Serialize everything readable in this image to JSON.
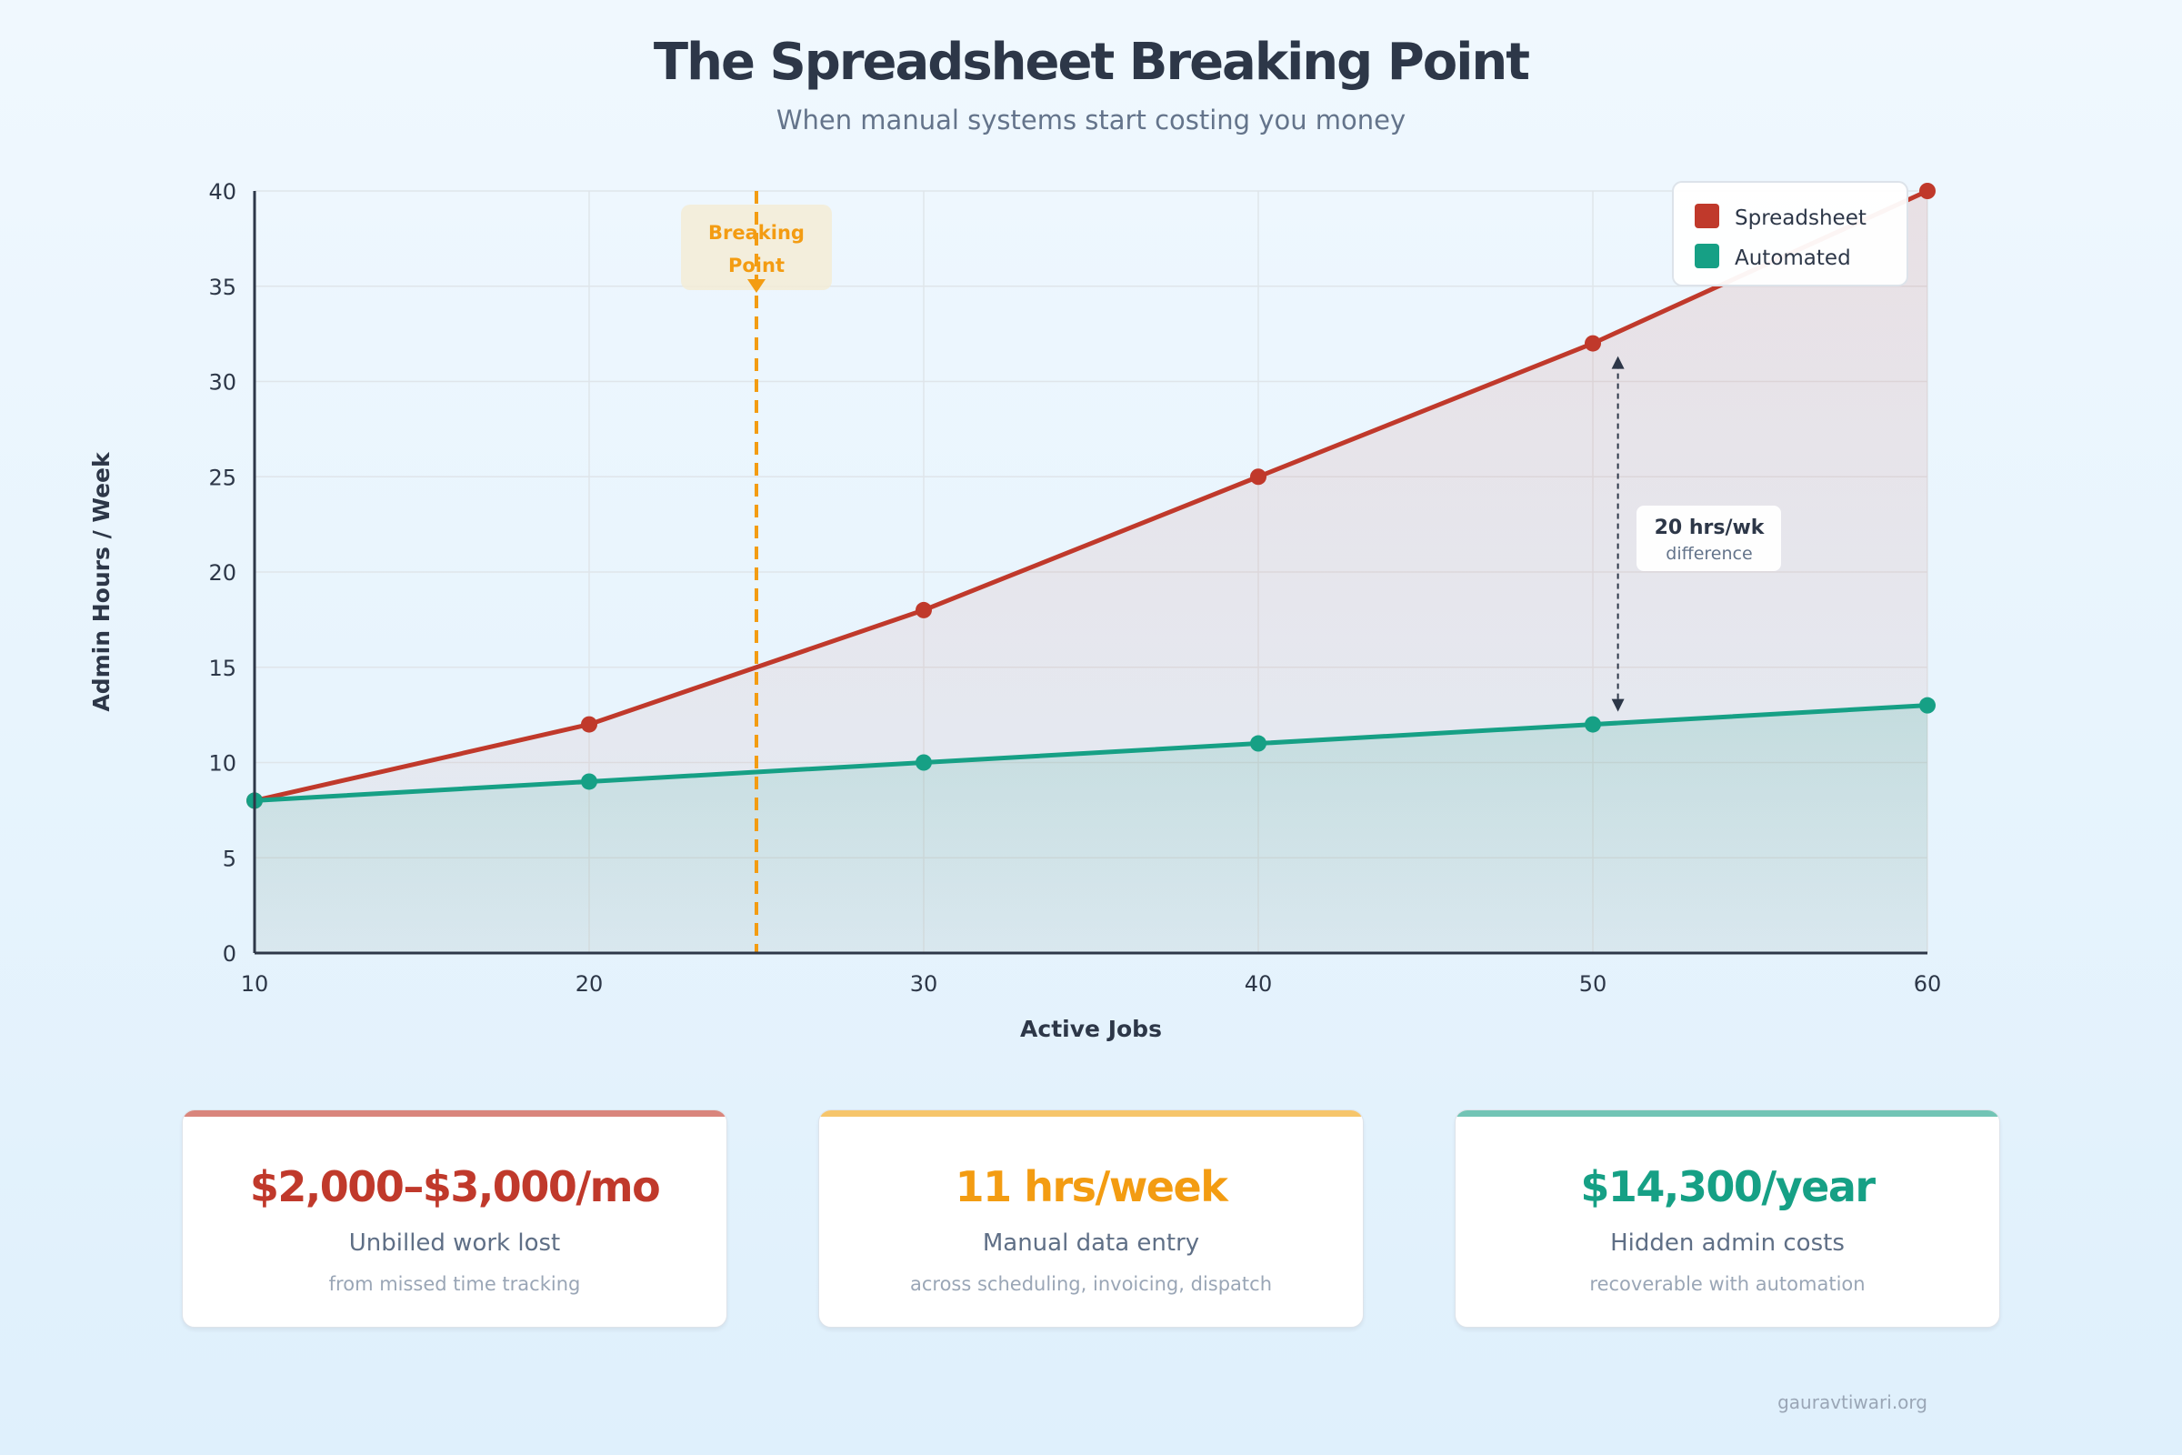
{
  "header": {
    "title": "The Spreadsheet Breaking Point",
    "subtitle": "When manual systems start costing you money"
  },
  "chart_data": {
    "type": "line",
    "title": "The Spreadsheet Breaking Point",
    "xlabel": "Active Jobs",
    "ylabel": "Admin Hours / Week",
    "x": [
      10,
      20,
      30,
      40,
      50,
      60
    ],
    "xlim": [
      10,
      60
    ],
    "ylim": [
      0,
      40
    ],
    "xticks": [
      10,
      20,
      30,
      40,
      50,
      60
    ],
    "yticks": [
      0,
      5,
      10,
      15,
      20,
      25,
      30,
      35,
      40
    ],
    "grid": true,
    "legend_position": "top-right",
    "series": [
      {
        "name": "Spreadsheet",
        "color": "#c0392b",
        "values": [
          8,
          12,
          18,
          25,
          32,
          40
        ]
      },
      {
        "name": "Automated",
        "color": "#16a085",
        "values": [
          8,
          9,
          10,
          11,
          12,
          13
        ]
      }
    ],
    "annotations": {
      "breaking_point": {
        "x": 25,
        "label_line1": "Breaking",
        "label_line2": "Point",
        "color": "#f39c12"
      },
      "difference": {
        "x": 50.75,
        "y_from": 12,
        "y_to": 32,
        "label": "20 hrs/wk",
        "sublabel": "difference"
      }
    }
  },
  "cards": [
    {
      "value": "$2,000–$3,000/mo",
      "label": "Unbilled work lost",
      "sub": "from missed time tracking",
      "color": "#c0392b",
      "bar": "#d9857c"
    },
    {
      "value": "11 hrs/week",
      "label": "Manual data entry",
      "sub": "across scheduling, invoicing, dispatch",
      "color": "#f39c12",
      "bar": "#f6c56b"
    },
    {
      "value": "$14,300/year",
      "label": "Hidden admin costs",
      "sub": "recoverable with automation",
      "color": "#16a085",
      "bar": "#72c4b5"
    }
  ],
  "footer": "gauravtiwari.org"
}
